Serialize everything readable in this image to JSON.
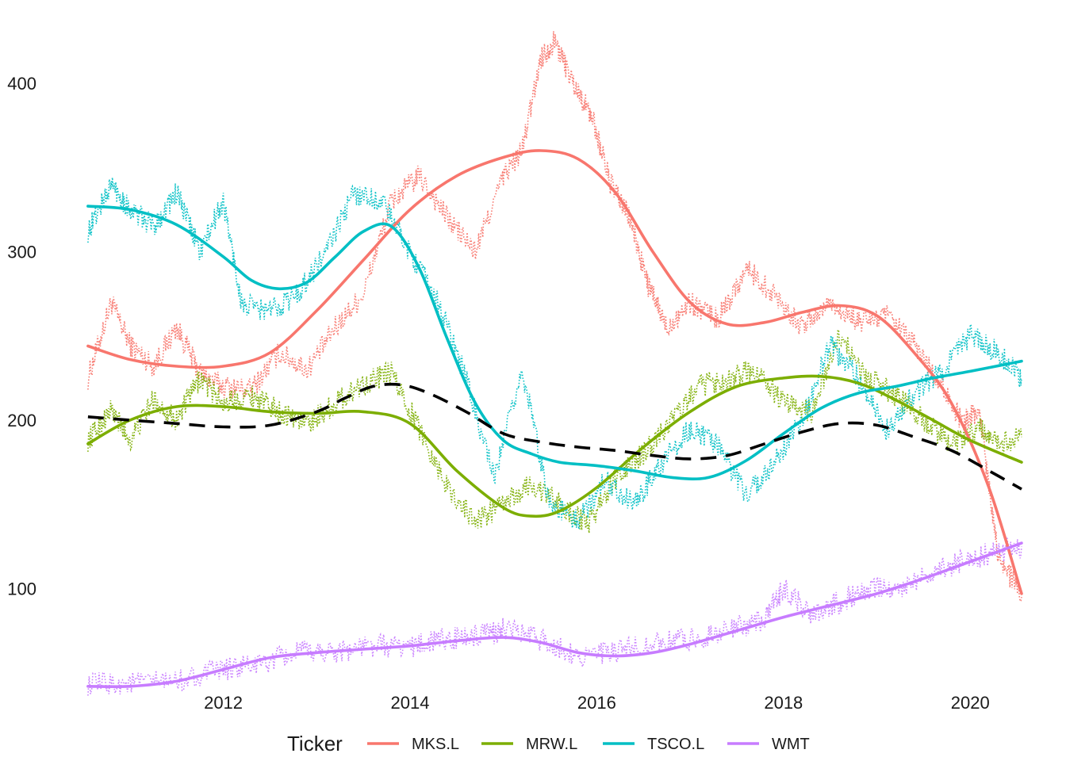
{
  "chart_data": {
    "type": "line",
    "title": "",
    "xlabel": "",
    "ylabel": "",
    "x_range": [
      2010.5,
      2020.55
    ],
    "y_range": [
      40,
      440
    ],
    "x_ticks": [
      2012,
      2014,
      2016,
      2018,
      2020
    ],
    "x_tick_labels": [
      "2012",
      "2014",
      "2016",
      "2018",
      "2020"
    ],
    "y_ticks": [
      100,
      200,
      300,
      400
    ],
    "y_tick_labels": [
      "100",
      "200",
      "300",
      "400"
    ],
    "grid": false,
    "legend": {
      "title": "Ticker",
      "position": "bottom",
      "items": [
        {
          "label": "MKS.L",
          "color": "#F8766D"
        },
        {
          "label": "MRW.L",
          "color": "#7CAE00"
        },
        {
          "label": "TSCO.L",
          "color": "#00BFC4"
        },
        {
          "label": "WMT",
          "color": "#C77CFF"
        }
      ]
    },
    "series": [
      {
        "name": "MKS.L",
        "color": "#F8766D",
        "raw": {
          "x": [
            2010.55,
            2010.8,
            2011.0,
            2011.25,
            2011.5,
            2011.75,
            2012.0,
            2012.3,
            2012.6,
            2012.9,
            2013.2,
            2013.5,
            2013.8,
            2014.1,
            2014.4,
            2014.7,
            2015.0,
            2015.2,
            2015.4,
            2015.55,
            2015.75,
            2015.95,
            2016.15,
            2016.35,
            2016.55,
            2016.75,
            2017.0,
            2017.3,
            2017.6,
            2017.9,
            2018.2,
            2018.5,
            2018.8,
            2019.1,
            2019.4,
            2019.7,
            2019.9,
            2020.1,
            2020.3,
            2020.55
          ],
          "y": [
            225,
            270,
            245,
            232,
            255,
            228,
            220,
            218,
            240,
            230,
            255,
            275,
            330,
            345,
            320,
            300,
            345,
            360,
            415,
            425,
            400,
            380,
            340,
            320,
            280,
            255,
            270,
            260,
            290,
            275,
            255,
            270,
            258,
            262,
            245,
            220,
            200,
            205,
            120,
            95
          ]
        },
        "smooth": {
          "x": [
            2010.55,
            2011.0,
            2011.5,
            2012.0,
            2012.5,
            2013.0,
            2013.5,
            2014.0,
            2014.5,
            2015.0,
            2015.4,
            2015.8,
            2016.2,
            2016.6,
            2017.0,
            2017.4,
            2017.8,
            2018.2,
            2018.6,
            2019.0,
            2019.4,
            2019.8,
            2020.2,
            2020.55
          ],
          "y": [
            244,
            236,
            232,
            232,
            240,
            265,
            295,
            325,
            345,
            356,
            360,
            355,
            335,
            300,
            270,
            257,
            258,
            264,
            268,
            262,
            240,
            210,
            160,
            97
          ]
        }
      },
      {
        "name": "MRW.L",
        "color": "#7CAE00",
        "raw": {
          "x": [
            2010.55,
            2010.8,
            2011.0,
            2011.25,
            2011.5,
            2011.75,
            2012.0,
            2012.3,
            2012.6,
            2012.9,
            2013.2,
            2013.5,
            2013.8,
            2014.1,
            2014.4,
            2014.7,
            2015.0,
            2015.3,
            2015.6,
            2015.9,
            2016.2,
            2016.5,
            2016.8,
            2017.1,
            2017.4,
            2017.7,
            2018.0,
            2018.3,
            2018.6,
            2018.9,
            2019.2,
            2019.5,
            2019.8,
            2020.1,
            2020.3,
            2020.55
          ],
          "y": [
            188,
            206,
            188,
            212,
            200,
            225,
            210,
            215,
            205,
            198,
            210,
            222,
            228,
            195,
            160,
            140,
            150,
            162,
            150,
            138,
            165,
            180,
            200,
            220,
            225,
            230,
            210,
            205,
            250,
            225,
            215,
            200,
            185,
            195,
            185,
            190
          ]
        },
        "smooth": {
          "x": [
            2010.55,
            2011.0,
            2011.5,
            2012.0,
            2012.5,
            2013.0,
            2013.5,
            2014.0,
            2014.5,
            2015.0,
            2015.3,
            2015.6,
            2016.0,
            2016.5,
            2017.0,
            2017.5,
            2018.0,
            2018.4,
            2018.8,
            2019.2,
            2019.6,
            2020.0,
            2020.55
          ],
          "y": [
            186,
            200,
            208,
            208,
            205,
            204,
            205,
            198,
            170,
            148,
            143,
            146,
            160,
            184,
            205,
            220,
            225,
            226,
            222,
            212,
            200,
            188,
            175
          ]
        }
      },
      {
        "name": "TSCO.L",
        "color": "#00BFC4",
        "raw": {
          "x": [
            2010.55,
            2010.8,
            2011.0,
            2011.25,
            2011.5,
            2011.75,
            2012.0,
            2012.2,
            2012.5,
            2012.8,
            2013.1,
            2013.4,
            2013.7,
            2014.0,
            2014.3,
            2014.6,
            2014.9,
            2015.2,
            2015.5,
            2015.8,
            2016.1,
            2016.4,
            2016.7,
            2017.0,
            2017.3,
            2017.6,
            2017.9,
            2018.2,
            2018.5,
            2018.8,
            2019.1,
            2019.4,
            2019.7,
            2020.0,
            2020.3,
            2020.55
          ],
          "y": [
            312,
            340,
            325,
            315,
            335,
            300,
            330,
            268,
            265,
            275,
            300,
            335,
            330,
            300,
            270,
            225,
            165,
            230,
            150,
            140,
            165,
            150,
            175,
            195,
            185,
            155,
            175,
            200,
            245,
            225,
            195,
            215,
            230,
            250,
            240,
            225
          ]
        },
        "smooth": {
          "x": [
            2010.55,
            2011.0,
            2011.5,
            2012.0,
            2012.3,
            2012.6,
            2012.9,
            2013.2,
            2013.5,
            2013.8,
            2014.1,
            2014.4,
            2014.7,
            2015.0,
            2015.3,
            2015.6,
            2016.0,
            2016.4,
            2016.8,
            2017.2,
            2017.6,
            2018.0,
            2018.4,
            2018.8,
            2019.2,
            2019.6,
            2020.0,
            2020.55
          ],
          "y": [
            327,
            325,
            316,
            297,
            283,
            278,
            282,
            297,
            312,
            315,
            290,
            248,
            210,
            188,
            180,
            175,
            173,
            170,
            166,
            166,
            176,
            192,
            207,
            216,
            220,
            225,
            229,
            235
          ]
        }
      },
      {
        "name": "WMT",
        "color": "#C77CFF",
        "raw": {
          "x": [
            2010.55,
            2011.0,
            2011.5,
            2012.0,
            2012.4,
            2012.8,
            2013.2,
            2013.6,
            2014.0,
            2014.4,
            2014.8,
            2015.0,
            2015.4,
            2015.8,
            2016.2,
            2016.6,
            2017.0,
            2017.4,
            2017.8,
            2018.0,
            2018.3,
            2018.6,
            2018.9,
            2019.2,
            2019.6,
            2020.0,
            2020.3,
            2020.55
          ],
          "y": [
            43,
            44,
            45,
            52,
            55,
            62,
            63,
            66,
            66,
            70,
            72,
            76,
            70,
            60,
            62,
            68,
            70,
            75,
            82,
            100,
            85,
            92,
            100,
            100,
            110,
            118,
            122,
            125
          ]
        },
        "smooth": {
          "x": [
            2010.55,
            2011.0,
            2011.5,
            2012.0,
            2012.5,
            2013.0,
            2013.5,
            2014.0,
            2014.5,
            2015.0,
            2015.4,
            2015.8,
            2016.2,
            2016.6,
            2017.0,
            2017.5,
            2018.0,
            2018.5,
            2019.0,
            2019.5,
            2020.0,
            2020.55
          ],
          "y": [
            42,
            42,
            45,
            52,
            59,
            62,
            64,
            66,
            69,
            71,
            68,
            62,
            60,
            62,
            67,
            75,
            83,
            90,
            97,
            106,
            116,
            127
          ]
        }
      }
    ],
    "average_trend": {
      "color": "#000000",
      "style": "dashed",
      "x": [
        2010.55,
        2011.0,
        2011.5,
        2012.0,
        2012.5,
        2013.0,
        2013.3,
        2013.6,
        2013.9,
        2014.2,
        2014.6,
        2015.0,
        2015.4,
        2015.8,
        2016.2,
        2016.6,
        2017.0,
        2017.4,
        2017.8,
        2018.2,
        2018.6,
        2019.0,
        2019.4,
        2019.8,
        2020.2,
        2020.55
      ],
      "y": [
        202,
        200,
        198,
        196,
        197,
        205,
        213,
        220,
        221,
        216,
        205,
        192,
        187,
        184,
        182,
        179,
        177,
        179,
        186,
        193,
        198,
        197,
        190,
        182,
        170,
        159
      ]
    }
  }
}
